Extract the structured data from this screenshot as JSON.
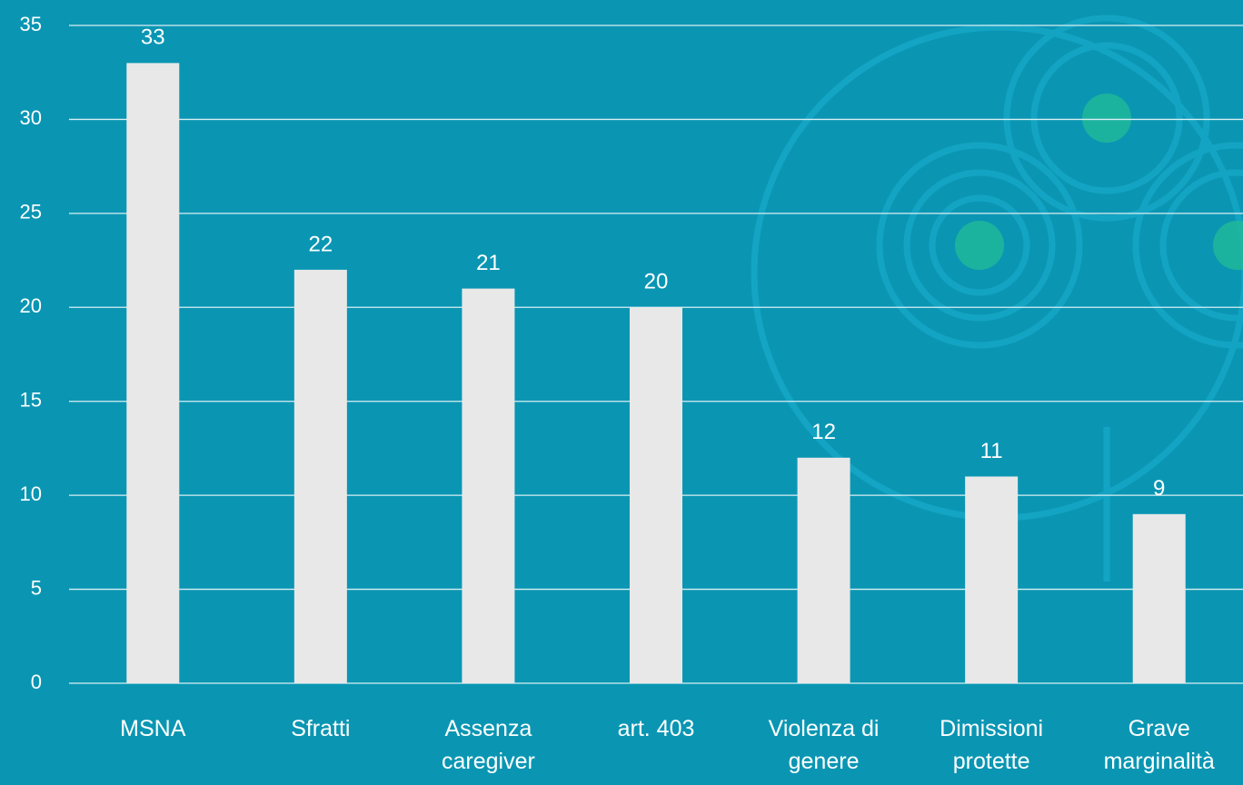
{
  "chart_data": {
    "type": "bar",
    "categories": [
      "MSNA",
      "Sfratti",
      "Assenza caregiver",
      "art. 403",
      "Violenza di genere",
      "Dimissioni protette",
      "Grave marginalità"
    ],
    "values": [
      33,
      22,
      21,
      20,
      12,
      11,
      9
    ],
    "color": "#e8e8e8",
    "ylim": [
      0,
      35
    ],
    "yticks": [
      0,
      5,
      10,
      15,
      20,
      25,
      30,
      35
    ],
    "grid": true
  }
}
